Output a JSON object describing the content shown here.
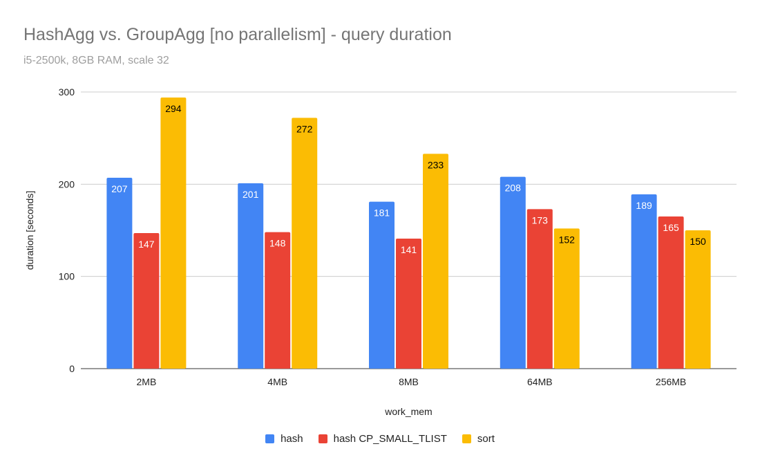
{
  "chart_data": {
    "type": "bar",
    "title": "HashAgg vs. GroupAgg [no parallelism] - query duration",
    "subtitle": "i5-2500k, 8GB RAM, scale 32",
    "xlabel": "work_mem",
    "ylabel": "duration [seconds]",
    "ylim": [
      0,
      300
    ],
    "yticks": [
      0,
      100,
      200,
      300
    ],
    "grid": true,
    "legend_position": "bottom",
    "categories": [
      "2MB",
      "4MB",
      "8MB",
      "64MB",
      "256MB"
    ],
    "series": [
      {
        "name": "hash",
        "color": "#4285F4",
        "label_color": "#ffffff",
        "values": [
          207,
          201,
          181,
          208,
          189
        ]
      },
      {
        "name": "hash CP_SMALL_TLIST",
        "color": "#EA4335",
        "label_color": "#ffffff",
        "values": [
          147,
          148,
          141,
          173,
          165
        ]
      },
      {
        "name": "sort",
        "color": "#FBBC04",
        "label_color": "#000000",
        "values": [
          294,
          272,
          233,
          152,
          150
        ]
      }
    ]
  }
}
